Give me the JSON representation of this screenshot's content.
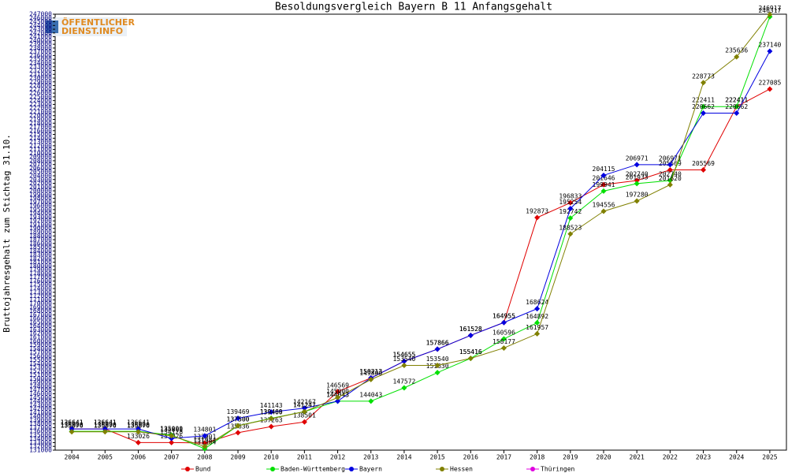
{
  "chart_data": {
    "type": "line",
    "title": "Besoldungsvergleich Bayern B 11 Anfangsgehalt",
    "ylabel": "Bruttojahresgehalt zum Stichtag 31.10.",
    "logo": [
      "ÖFFENTLICHER",
      "DIENST.INFO"
    ],
    "categories": [
      "2004",
      "2005",
      "2006",
      "2007",
      "2008",
      "2009",
      "2010",
      "2011",
      "2012",
      "2013",
      "2014",
      "2015",
      "2016",
      "2017",
      "2018",
      "2019",
      "2020",
      "2021",
      "2022",
      "2023",
      "2024",
      "2025"
    ],
    "series": [
      {
        "name": "Bund",
        "color": "#e00000",
        "values": [
          136641,
          136641,
          133026,
          133026,
          132901,
          135636,
          137263,
          138501,
          146569,
          150213,
          154655,
          157866,
          161528,
          164955,
          192873,
          196833,
          201646,
          202740,
          205569,
          205569,
          222411,
          227085
        ]
      },
      {
        "name": "Baden-Württemberg",
        "color": "#00e000",
        "values": [
          136000,
          136000,
          136000,
          135000,
          131384,
          137500,
          139469,
          141247,
          144043,
          144043,
          147572,
          151630,
          155416,
          160596,
          164892,
          192742,
          199941,
          201933,
          202740,
          222411,
          222411,
          246317
        ]
      },
      {
        "name": "Bayern",
        "color": "#0000e0",
        "values": [
          136641,
          136641,
          136641,
          134128,
          134801,
          139469,
          141143,
          142167,
          144043,
          150213,
          154655,
          157866,
          161528,
          164955,
          168624,
          195254,
          204115,
          206971,
          206971,
          220662,
          220662,
          237140
        ]
      },
      {
        "name": "Hessen",
        "color": "#808000",
        "values": [
          135876,
          135876,
          135876,
          134801,
          131984,
          137500,
          139400,
          141247,
          145000,
          149800,
          153540,
          153540,
          155416,
          158177,
          161957,
          188523,
          194556,
          197280,
          201620,
          228773,
          235636,
          246917
        ]
      },
      {
        "name": "Thüringen",
        "color": "#e000e0",
        "values": [
          null,
          null,
          null,
          null,
          null,
          null,
          null,
          null,
          null,
          null,
          null,
          null,
          null,
          null,
          null,
          null,
          null,
          null,
          null,
          null,
          null,
          null
        ]
      }
    ],
    "ylim": [
      131000,
      247000
    ],
    "yticks": [
      131000,
      132000,
      133000,
      134000,
      135000,
      136000,
      137000,
      138000,
      139000,
      140000,
      141000,
      142000,
      143000,
      144000,
      145000,
      146000,
      147000,
      148000,
      149000,
      150000,
      151000,
      152000,
      153000,
      154000,
      155000,
      156000,
      157000,
      158000,
      159000,
      160000,
      161000,
      162000,
      163000,
      164000,
      165000,
      166000,
      167000,
      168000,
      169000,
      170000,
      171000,
      172000,
      173000,
      174000,
      175000,
      176000,
      177000,
      178000,
      179000,
      180000,
      181000,
      182000,
      183000,
      184000,
      185000,
      186000,
      187000,
      188000,
      189000,
      190000,
      191000,
      192000,
      193000,
      194000,
      195000,
      196000,
      197000,
      198000,
      199000,
      200000,
      201000,
      202000,
      203000,
      204000,
      205000,
      206000,
      207000,
      208000,
      209000,
      210000,
      211000,
      212000,
      213000,
      214000,
      215000,
      216000,
      217000,
      218000,
      219000,
      220000,
      221000,
      222000,
      223000,
      224000,
      225000,
      226000,
      227000,
      228000,
      229000,
      230000,
      231000,
      232000,
      233000,
      234000,
      235000,
      236000,
      237000,
      238000,
      239000,
      240000,
      241000,
      242000,
      243000,
      244000,
      245000,
      246000,
      247000
    ]
  }
}
